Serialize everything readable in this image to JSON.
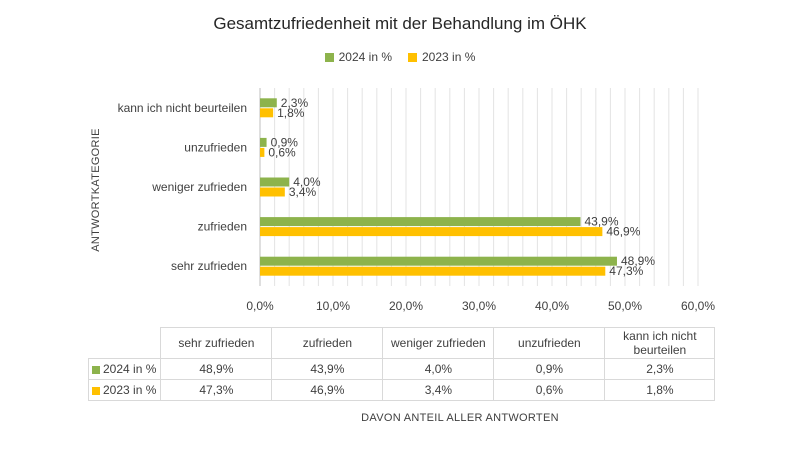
{
  "chart_data": {
    "type": "bar",
    "orientation": "horizontal",
    "title": "Gesamtzufriedenheit mit der Behandlung im ÖHK",
    "ylabel": "ANTWORTKATEGORIE",
    "xlabel": "DAVON ANTEIL ALLER ANTWORTEN",
    "categories": [
      "sehr zufrieden",
      "zufrieden",
      "weniger zufrieden",
      "unzufrieden",
      "kann ich nicht beurteilen"
    ],
    "series": [
      {
        "name": "2024 in %",
        "color": "#8db34c",
        "values": [
          48.9,
          43.9,
          4.0,
          0.9,
          2.3
        ],
        "labels": [
          "48,9%",
          "43,9%",
          "4,0%",
          "0,9%",
          "2,3%"
        ]
      },
      {
        "name": "2023 in %",
        "color": "#ffc000",
        "values": [
          47.3,
          46.9,
          3.4,
          0.6,
          1.8
        ],
        "labels": [
          "47,3%",
          "46,9%",
          "3,4%",
          "0,6%",
          "1,8%"
        ]
      }
    ],
    "xlim": [
      0,
      60
    ],
    "xticks": [
      0,
      10,
      20,
      30,
      40,
      50,
      60
    ],
    "xtick_labels": [
      "0,0%",
      "10,0%",
      "20,0%",
      "30,0%",
      "40,0%",
      "50,0%",
      "60,0%"
    ],
    "grid": true,
    "legend": "top",
    "table": {
      "header": [
        "sehr zufrieden",
        "zufrieden",
        "weniger zufrieden",
        "unzufrieden",
        "kann ich nicht beurteilen"
      ],
      "rows": [
        {
          "label": "2024 in %",
          "color": "#8db34c",
          "cells": [
            "48,9%",
            "43,9%",
            "4,0%",
            "0,9%",
            "2,3%"
          ]
        },
        {
          "label": "2023 in %",
          "color": "#ffc000",
          "cells": [
            "47,3%",
            "46,9%",
            "3,4%",
            "0,6%",
            "1,8%"
          ]
        }
      ]
    }
  }
}
